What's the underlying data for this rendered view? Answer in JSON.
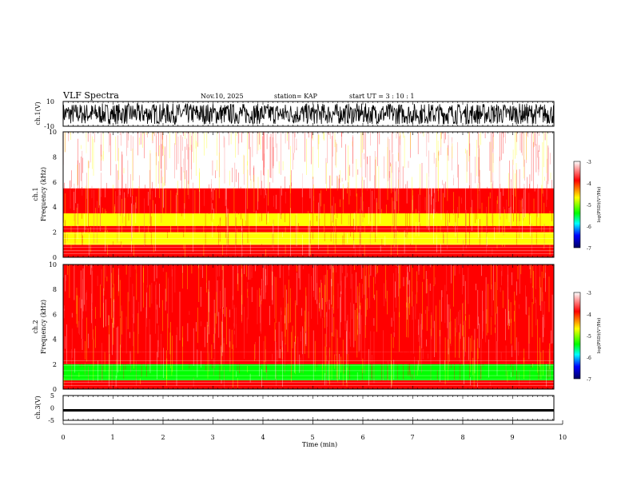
{
  "header": {
    "title": "VLF Spectra",
    "date": "Nov.10, 2025",
    "station": "station= KAP",
    "start": "start  UT =   3  : 10 : 1"
  },
  "chart_data": [
    {
      "type": "line",
      "name": "ch1-waveform",
      "ylabel": "ch.1(V)",
      "ylim": [
        -10,
        10
      ],
      "yticks": [
        "10",
        "-10"
      ],
      "xlim": [
        0,
        10
      ]
    },
    {
      "type": "heatmap",
      "name": "ch1-spectrogram",
      "ylabel_line1": "ch.1",
      "ylabel_line2": "Frequency (kHz)",
      "ylim": [
        0,
        10
      ],
      "yticks": [
        "0",
        "2",
        "4",
        "6",
        "8",
        "10"
      ],
      "xlim": [
        0,
        10
      ],
      "bands_khz": [
        {
          "from": 0,
          "to": 0.5,
          "level": -4.2
        },
        {
          "from": 0.5,
          "to": 1.0,
          "level": -4.0
        },
        {
          "from": 1.0,
          "to": 2.0,
          "level": -4.6
        },
        {
          "from": 2.0,
          "to": 2.5,
          "level": -4.1
        },
        {
          "from": 2.5,
          "to": 3.5,
          "level": -4.5
        },
        {
          "from": 3.5,
          "to": 5.5,
          "level": -3.7
        },
        {
          "from": 5.5,
          "to": 10,
          "level": -3.3
        }
      ],
      "colorbar": {
        "label": "log(PSD)(V²/Hz)",
        "ticks": [
          "-3",
          "-4",
          "-5",
          "-6",
          "-7"
        ],
        "range": [
          -7,
          -3
        ]
      }
    },
    {
      "type": "heatmap",
      "name": "ch2-spectrogram",
      "ylabel_line1": "ch.2",
      "ylabel_line2": "Frequency (kHz)",
      "ylim": [
        0,
        10
      ],
      "yticks": [
        "0",
        "2",
        "4",
        "6",
        "8",
        "10"
      ],
      "xlim": [
        0,
        10
      ],
      "bands_khz": [
        {
          "from": 0,
          "to": 0.7,
          "level": -4.2
        },
        {
          "from": 0.7,
          "to": 2.0,
          "level": -5.2
        },
        {
          "from": 2.0,
          "to": 3.0,
          "level": -4.2
        },
        {
          "from": 3.0,
          "to": 10,
          "level": -3.9
        }
      ],
      "colorbar": {
        "label": "log(PSD)(V²/Hz)",
        "ticks": [
          "-3",
          "-4",
          "-5",
          "-6",
          "-7"
        ],
        "range": [
          -7,
          -3
        ]
      }
    },
    {
      "type": "line",
      "name": "ch3-waveform",
      "ylabel": "ch.3(V)",
      "ylim": [
        -5,
        5
      ],
      "yticks": [
        "5",
        "0",
        "-5"
      ],
      "level_v": [
        -1.5,
        -0.5
      ],
      "xlim": [
        0,
        10
      ],
      "xlabel": "Time (min)",
      "xticks": [
        "0",
        "1",
        "2",
        "3",
        "4",
        "5",
        "6",
        "7",
        "8",
        "9",
        "10"
      ]
    }
  ],
  "colors": {
    "axis": "#000000",
    "colormap": [
      "#ffffff",
      "#ff0000",
      "#ffff00",
      "#00ff00",
      "#00ffff",
      "#0000ff",
      "#000060"
    ]
  }
}
